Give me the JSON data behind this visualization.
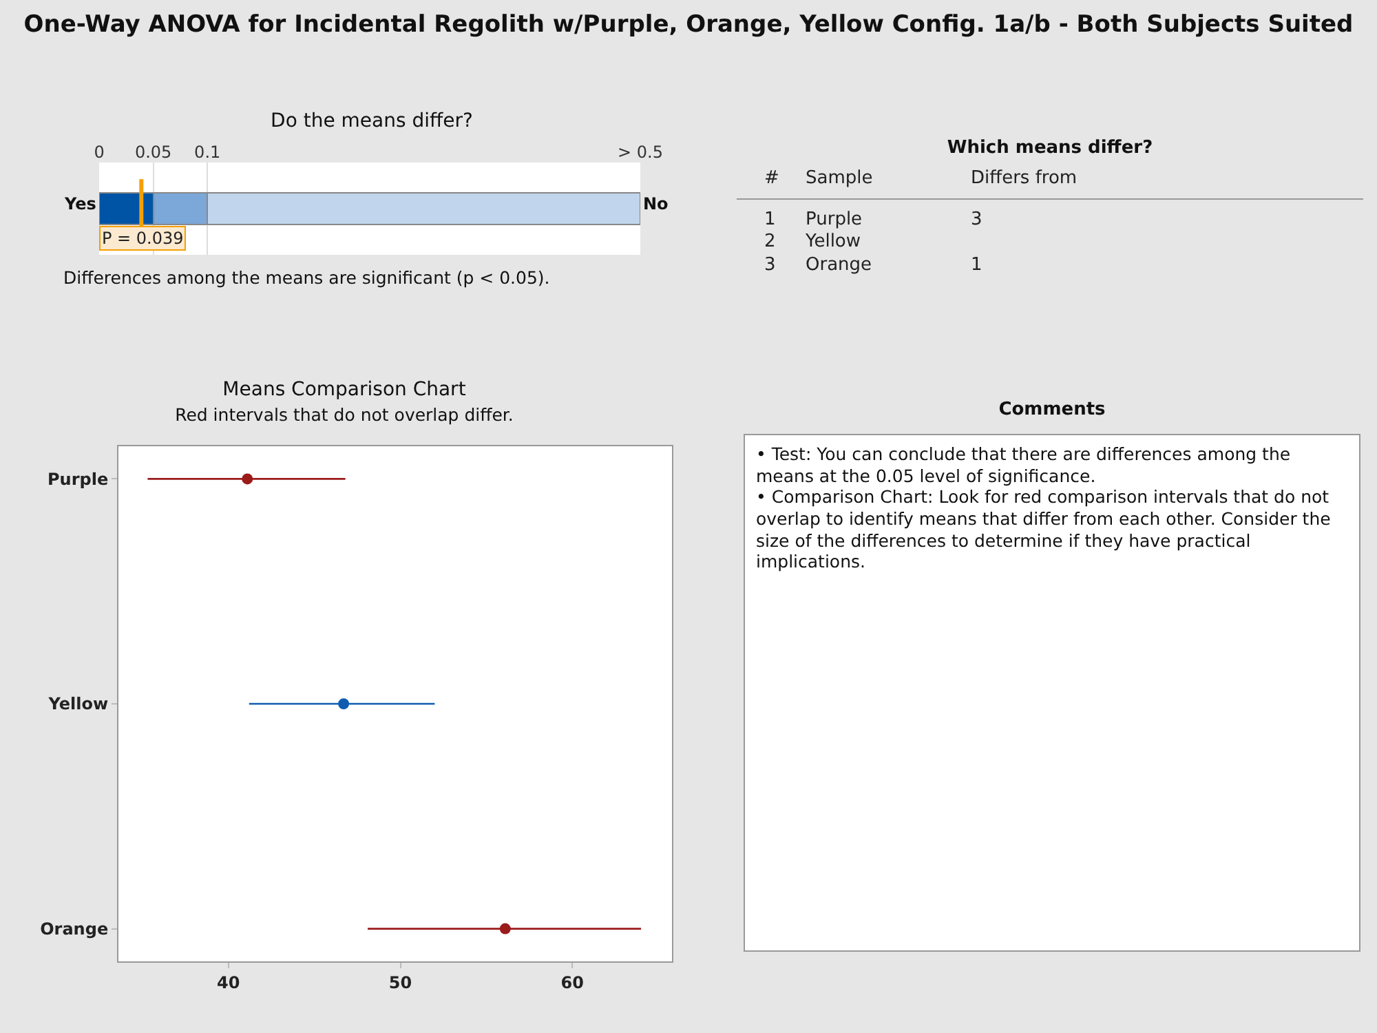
{
  "chart_data": [
    {
      "type": "other",
      "title": "One-Way ANOVA for Incidental Regolith w/Purple, Orange, Yellow Config. 1a/b - Both Subjects Suited"
    },
    {
      "type": "bar",
      "title": "Do the means differ?",
      "orientation": "horizontal",
      "stacked": true,
      "categories": [
        null
      ],
      "xlim": [
        0,
        0.5
      ],
      "xticks": [
        0,
        0.05,
        0.1,
        {
          "value": 0.5,
          "label": "> 0.5"
        }
      ],
      "grid": "x",
      "series": [
        {
          "color": "#0054a6",
          "values": [
            0.05
          ]
        },
        {
          "color": "#7ba7d9",
          "values": [
            0.05
          ]
        },
        {
          "color": "#c1d5ec",
          "values": [
            0.4
          ]
        }
      ],
      "ref_lines": [
        {
          "axis": "x",
          "value": 0.039,
          "label": "P = 0.039",
          "color": "#f5a000"
        }
      ],
      "annotations": [
        "Yes",
        "No",
        "Differences among the means are significant (p < 0.05)."
      ]
    },
    {
      "type": "other",
      "title": "Which means differ?",
      "annotations": [
        "#",
        "Sample",
        "Differs from",
        "1",
        "Purple",
        "3",
        "2",
        "Yellow",
        "3",
        "Orange",
        "1"
      ]
    },
    {
      "type": "scatter",
      "title": "Means Comparison Chart",
      "subtitle": "Red intervals that do not overlap differ.",
      "orientation": "horizontal",
      "marker": "circle",
      "grid": false,
      "categories": [
        "Purple",
        "Yellow",
        "Orange"
      ],
      "values": [
        41.1,
        46.7,
        56.1
      ],
      "errors": [
        [
          35.3,
          46.8
        ],
        [
          41.2,
          52.0
        ],
        [
          48.1,
          64.0
        ]
      ],
      "colors": [
        "#9b1b1b",
        "#0f5db0",
        "#9b1b1b"
      ],
      "xlim": [
        33.6,
        65.8
      ],
      "xticks": [
        40,
        50,
        60
      ]
    },
    {
      "type": "other",
      "title": "Comments",
      "annotations": [
        "• Test: You can conclude that there are differences among the means at the 0.05 level of significance.",
        "• Comparison Chart: Look for red comparison intervals that do not overlap to identify means that differ from each other. Consider the size of the differences to determine if they have practical implications."
      ]
    }
  ]
}
